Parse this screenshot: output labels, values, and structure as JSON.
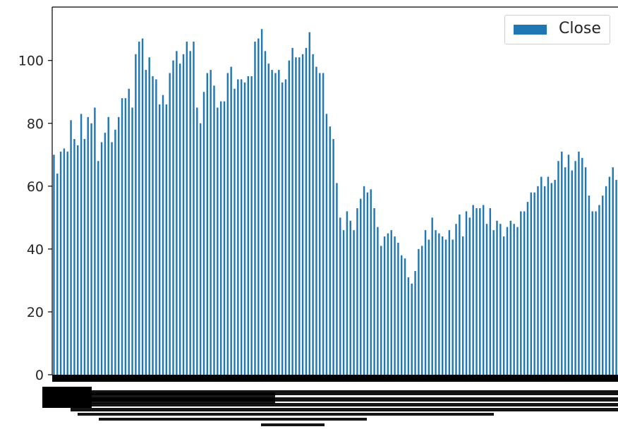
{
  "chart_data": {
    "type": "bar",
    "title": "",
    "xlabel": "",
    "ylabel": "",
    "ylim": [
      0,
      117
    ],
    "yticks": [
      0,
      20,
      40,
      60,
      80,
      100
    ],
    "legend": {
      "position": "top-right",
      "entries": [
        "Close"
      ]
    },
    "grid": false,
    "colors": {
      "bar": "#1f77b4"
    },
    "series": [
      {
        "name": "Close",
        "values": [
          70,
          64,
          71,
          72,
          71,
          81,
          75,
          73,
          83,
          75,
          82,
          80,
          85,
          68,
          74,
          77,
          82,
          74,
          78,
          82,
          88,
          88,
          91,
          85,
          102,
          106,
          107,
          97,
          101,
          95,
          94,
          86,
          89,
          86,
          96,
          100,
          103,
          99,
          102,
          106,
          103,
          106,
          85,
          80,
          90,
          96,
          97,
          92,
          85,
          87,
          87,
          96,
          98,
          91,
          94,
          94,
          93,
          95,
          95,
          106,
          107,
          110,
          103,
          99,
          97,
          96,
          97,
          93,
          94,
          100,
          104,
          101,
          101,
          102,
          104,
          109,
          102,
          98,
          96,
          96,
          83,
          79,
          75,
          61,
          50,
          46,
          52,
          49,
          46,
          53,
          56,
          60,
          58,
          59,
          53,
          47,
          41,
          44,
          45,
          46,
          44,
          42,
          38,
          37,
          31,
          29,
          33,
          40,
          41,
          46,
          43,
          50,
          46,
          45,
          44,
          43,
          46,
          43,
          48,
          51,
          44,
          52,
          50,
          54,
          53,
          53,
          54,
          48,
          53,
          46,
          49,
          48,
          44,
          47,
          49,
          48,
          47,
          52,
          52,
          55,
          58,
          58,
          60,
          63,
          60,
          63,
          61,
          62,
          68,
          71,
          66,
          70,
          65,
          68,
          71,
          69,
          66,
          57,
          52,
          52,
          54,
          57,
          60,
          63,
          66,
          62
        ]
      }
    ],
    "x_tick_labels_legible": false
  }
}
